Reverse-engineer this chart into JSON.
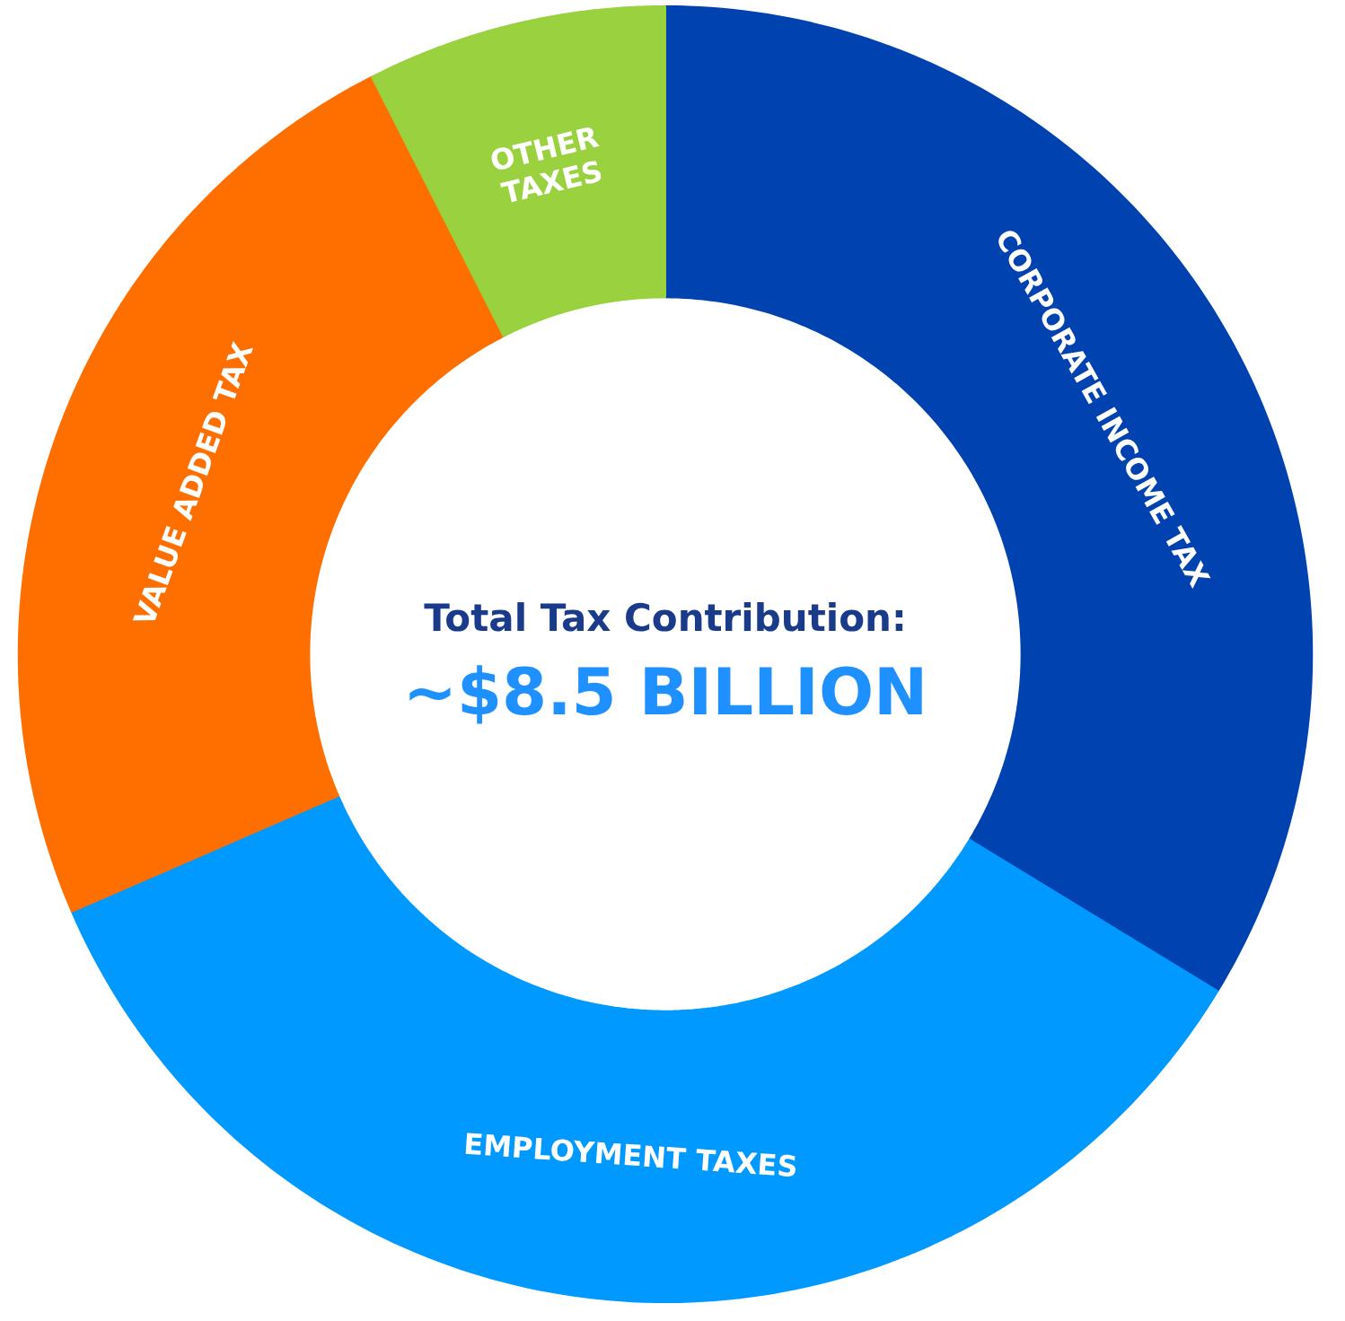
{
  "chart_data": {
    "type": "donut",
    "title": "Total Tax Contribution:",
    "subtitle": "~$8.5 BILLION",
    "categories": [
      "CORPORATE INCOME TAX",
      "EMPLOYMENT TAXES",
      "VALUE ADDED TAX",
      "OTHER TAXES"
    ],
    "values": [
      33.7,
      34.8,
      24.0,
      7.5
    ],
    "colors": [
      "#0043b0",
      "#0099ff",
      "#ff6f00",
      "#99d13f"
    ],
    "legend": false
  }
}
